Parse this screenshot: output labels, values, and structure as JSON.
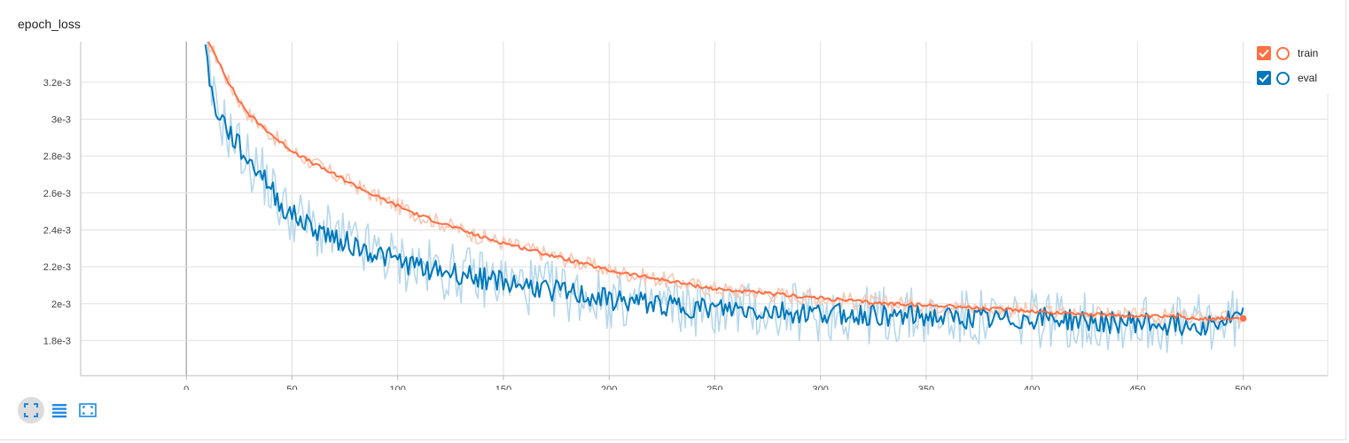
{
  "chart_title": "epoch_loss",
  "toolbar": {
    "buttons": [
      {
        "icon": "fit-domain-icon",
        "active": true
      },
      {
        "icon": "list-icon",
        "active": false
      },
      {
        "icon": "fit-to-window-icon",
        "active": false
      }
    ]
  },
  "colors": {
    "train": "#ff7043",
    "train_raw": "#f9c8b4",
    "eval": "#0077bb",
    "eval_raw": "#b6d8ec",
    "grid": "#e0e0e0",
    "zero_line": "#9e9e9e",
    "axis": "#bdbdbd",
    "toolbar_icon": "#1e88e5"
  },
  "legend": [
    {
      "label": "train",
      "color": "#ff7043",
      "checked": true
    },
    {
      "label": "eval",
      "color": "#0077bb",
      "checked": true
    }
  ],
  "chart_data": {
    "type": "line",
    "title": "epoch_loss",
    "xlabel": "",
    "ylabel": "",
    "xlim": [
      -50,
      540
    ],
    "ylim": [
      0.00161,
      0.00342
    ],
    "xticks": [
      0,
      50,
      100,
      150,
      200,
      250,
      300,
      350,
      400,
      450,
      500
    ],
    "xtick_labels": [
      "0",
      "50",
      "100",
      "150",
      "200",
      "250",
      "300",
      "350",
      "400",
      "450",
      "500"
    ],
    "yticks": [
      0.0018,
      0.002,
      0.0022,
      0.0024,
      0.0026,
      0.0028,
      0.003,
      0.0032
    ],
    "ytick_labels": [
      "1.8e-3",
      "2e-3",
      "2.2e-3",
      "2.4e-3",
      "2.6e-3",
      "2.8e-3",
      "3e-3",
      "3.2e-3"
    ],
    "grid": true,
    "legend_position": "top-right",
    "series": [
      {
        "name": "train",
        "points": [
          [
            9,
            0.00345
          ],
          [
            12,
            0.00338
          ],
          [
            15,
            0.00332
          ],
          [
            18,
            0.00325
          ],
          [
            20,
            0.0032
          ],
          [
            25,
            0.0031
          ],
          [
            30,
            0.00302
          ],
          [
            35,
            0.00297
          ],
          [
            40,
            0.00292
          ],
          [
            45,
            0.00287
          ],
          [
            50,
            0.00283
          ],
          [
            60,
            0.00276
          ],
          [
            70,
            0.0027
          ],
          [
            80,
            0.00264
          ],
          [
            90,
            0.00258
          ],
          [
            100,
            0.00253
          ],
          [
            110,
            0.00248
          ],
          [
            120,
            0.00244
          ],
          [
            130,
            0.0024
          ],
          [
            140,
            0.00236
          ],
          [
            150,
            0.00233
          ],
          [
            160,
            0.0023
          ],
          [
            170,
            0.00227
          ],
          [
            180,
            0.00224
          ],
          [
            190,
            0.00221
          ],
          [
            200,
            0.00218
          ],
          [
            210,
            0.00216
          ],
          [
            220,
            0.00214
          ],
          [
            230,
            0.00212
          ],
          [
            240,
            0.0021
          ],
          [
            250,
            0.00208
          ],
          [
            260,
            0.00207
          ],
          [
            270,
            0.00206
          ],
          [
            280,
            0.00205
          ],
          [
            290,
            0.00204
          ],
          [
            300,
            0.00203
          ],
          [
            310,
            0.00202
          ],
          [
            320,
            0.00201
          ],
          [
            330,
            0.002
          ],
          [
            340,
            0.002
          ],
          [
            350,
            0.00199
          ],
          [
            360,
            0.00199
          ],
          [
            370,
            0.00198
          ],
          [
            380,
            0.00197
          ],
          [
            390,
            0.00197
          ],
          [
            400,
            0.00196
          ],
          [
            410,
            0.00195
          ],
          [
            420,
            0.00195
          ],
          [
            430,
            0.00194
          ],
          [
            440,
            0.00194
          ],
          [
            450,
            0.00193
          ],
          [
            460,
            0.00193
          ],
          [
            470,
            0.00193
          ],
          [
            480,
            0.00192
          ],
          [
            490,
            0.00192
          ],
          [
            500,
            0.00192
          ]
        ]
      },
      {
        "name": "eval",
        "points": [
          [
            9,
            0.00345
          ],
          [
            11,
            0.00318
          ],
          [
            14,
            0.00305
          ],
          [
            17,
            0.003
          ],
          [
            20,
            0.00293
          ],
          [
            25,
            0.00285
          ],
          [
            30,
            0.00276
          ],
          [
            35,
            0.00272
          ],
          [
            40,
            0.00262
          ],
          [
            45,
            0.00253
          ],
          [
            50,
            0.00248
          ],
          [
            60,
            0.00241
          ],
          [
            70,
            0.00236
          ],
          [
            80,
            0.00231
          ],
          [
            90,
            0.00227
          ],
          [
            100,
            0.00223
          ],
          [
            110,
            0.0022
          ],
          [
            120,
            0.00218
          ],
          [
            130,
            0.00216
          ],
          [
            140,
            0.00214
          ],
          [
            150,
            0.00212
          ],
          [
            160,
            0.0021
          ],
          [
            170,
            0.00208
          ],
          [
            180,
            0.00206
          ],
          [
            190,
            0.00204
          ],
          [
            200,
            0.00202
          ],
          [
            210,
            0.00201
          ],
          [
            220,
            0.002
          ],
          [
            230,
            0.00199
          ],
          [
            240,
            0.00198
          ],
          [
            250,
            0.00197
          ],
          [
            260,
            0.00197
          ],
          [
            270,
            0.00196
          ],
          [
            280,
            0.00196
          ],
          [
            290,
            0.00195
          ],
          [
            300,
            0.00195
          ],
          [
            310,
            0.00195
          ],
          [
            320,
            0.00194
          ],
          [
            330,
            0.00194
          ],
          [
            340,
            0.00193
          ],
          [
            350,
            0.00193
          ],
          [
            360,
            0.00192
          ],
          [
            370,
            0.00192
          ],
          [
            380,
            0.00191
          ],
          [
            390,
            0.00191
          ],
          [
            400,
            0.00192
          ],
          [
            410,
            0.00192
          ],
          [
            420,
            0.00191
          ],
          [
            430,
            0.0019
          ],
          [
            440,
            0.0019
          ],
          [
            450,
            0.0019
          ],
          [
            460,
            0.00189
          ],
          [
            470,
            0.00189
          ],
          [
            480,
            0.00189
          ],
          [
            490,
            0.0019
          ],
          [
            500,
            0.00193
          ]
        ]
      }
    ]
  }
}
